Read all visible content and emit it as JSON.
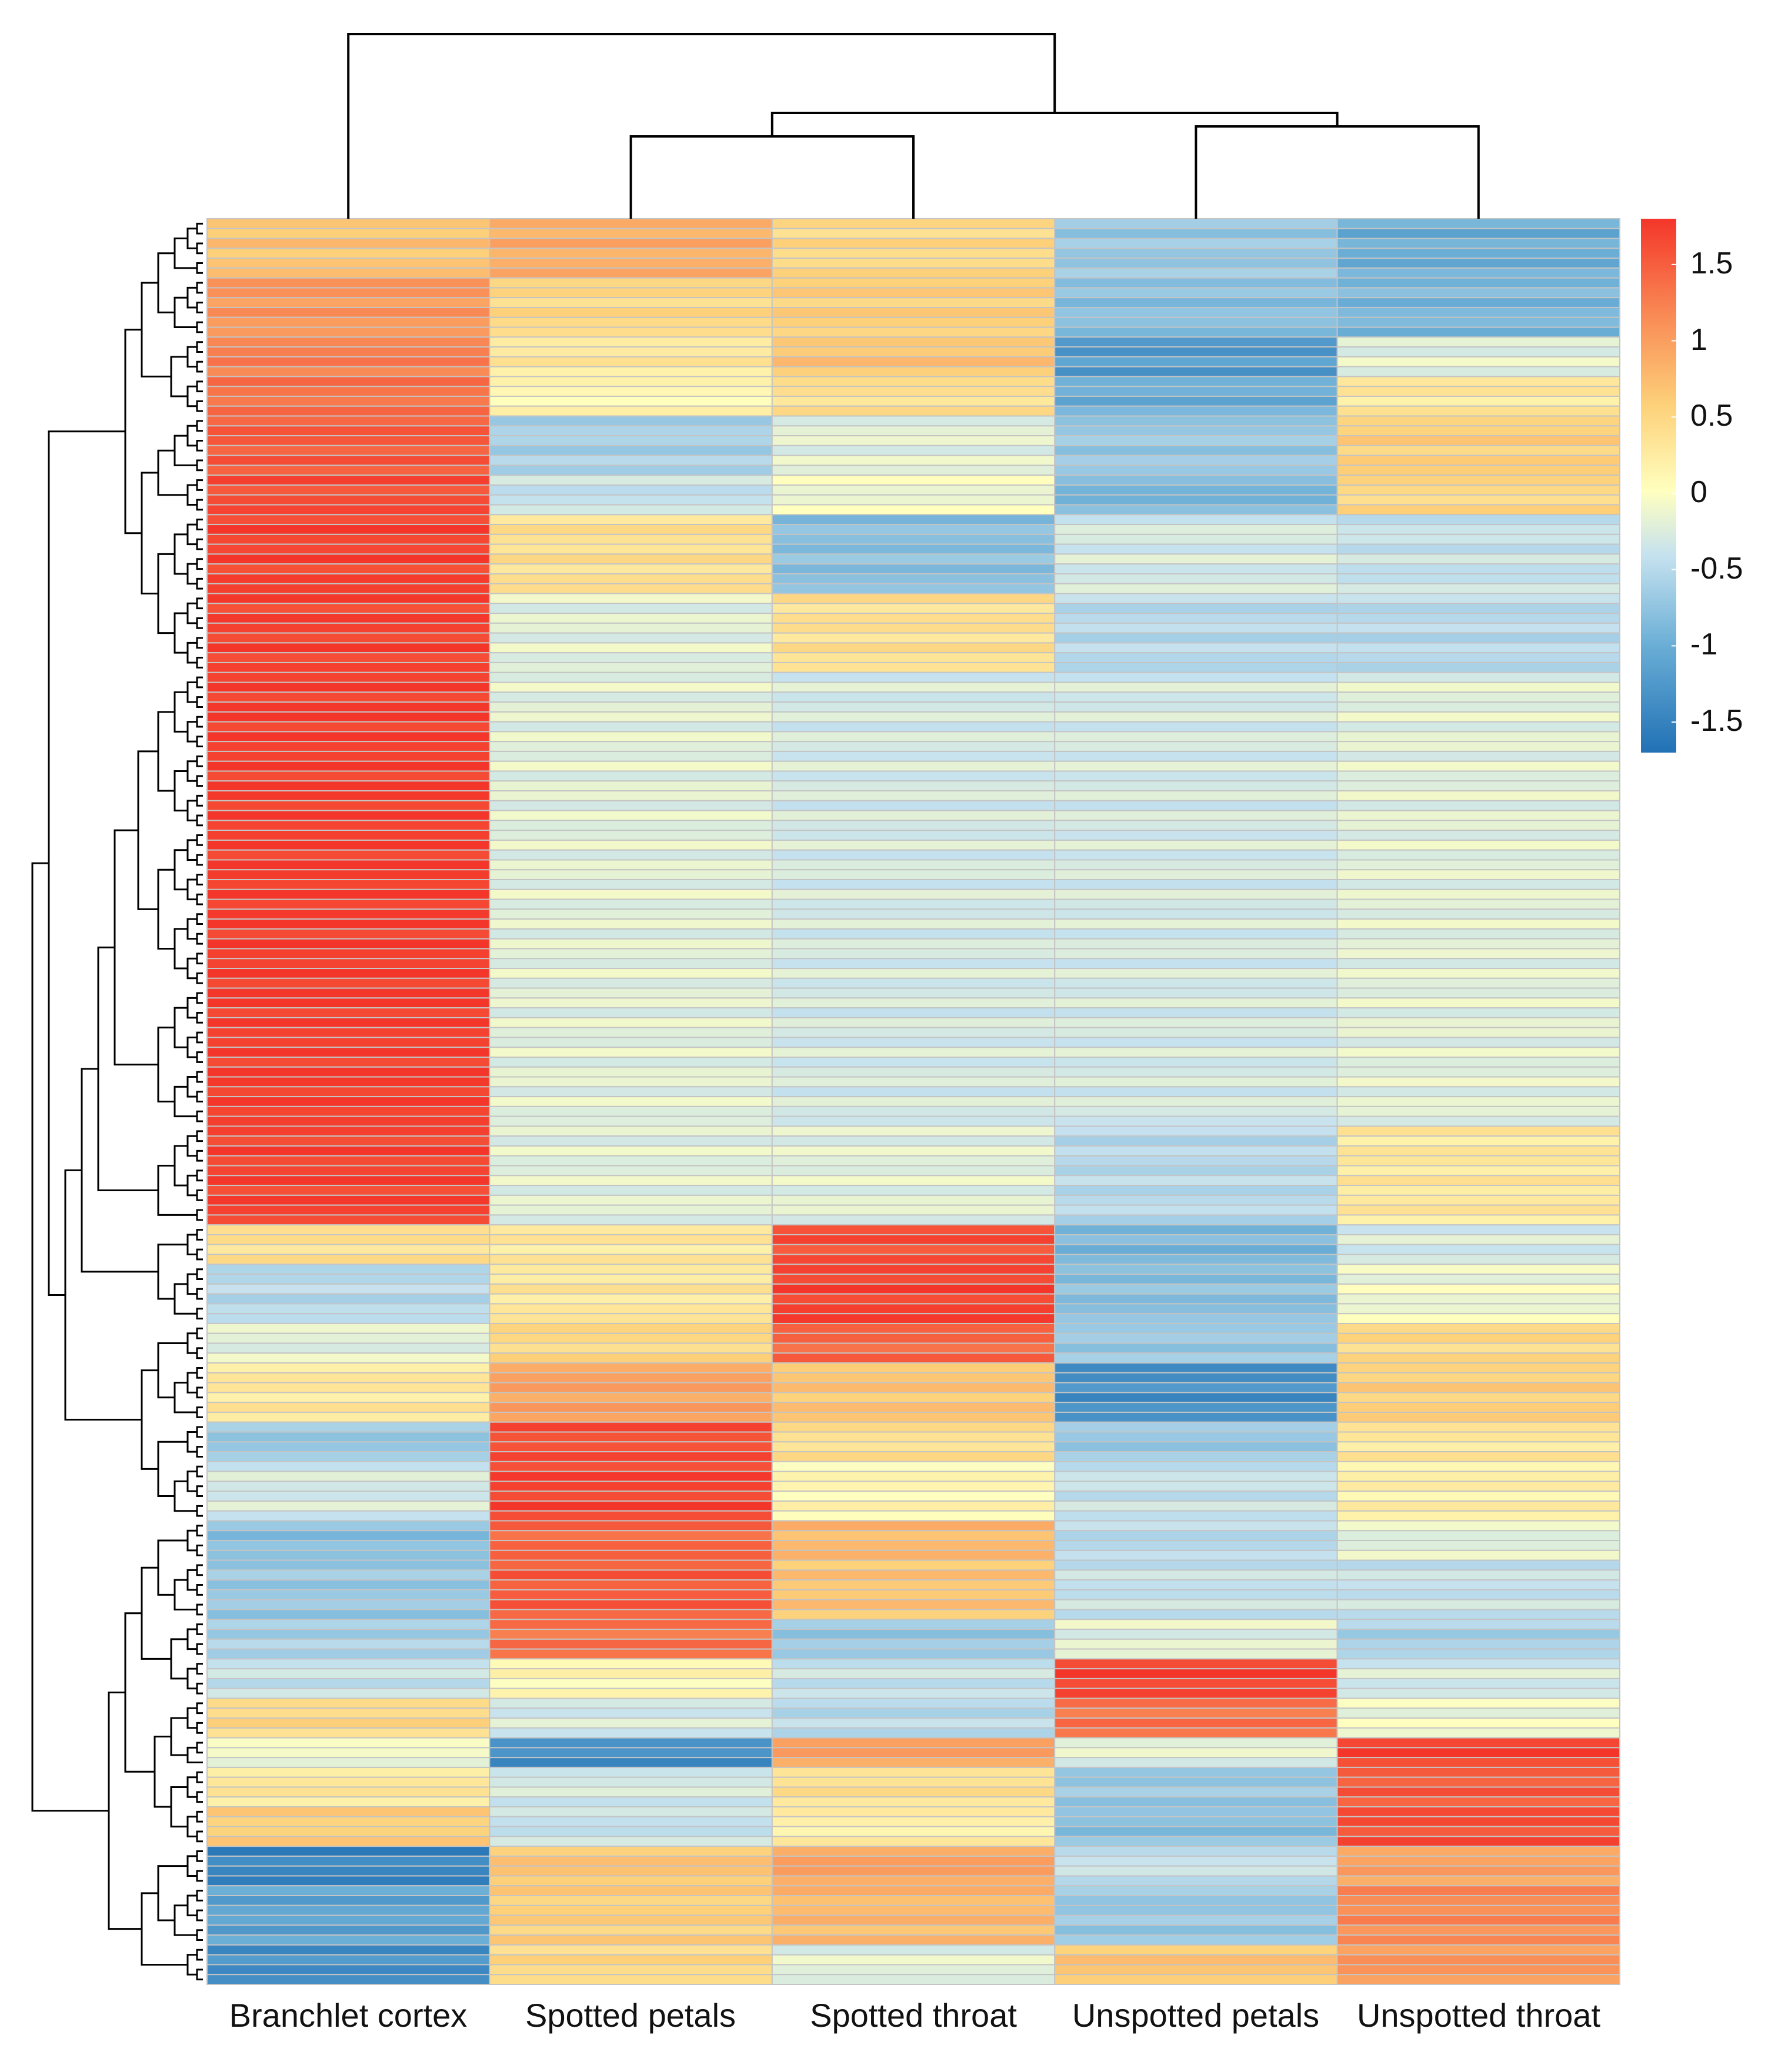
{
  "chart_data": {
    "type": "heatmap",
    "title": "",
    "columns": [
      "Branchlet cortex",
      "Spotted petals",
      "Spotted throat",
      "Unspotted petals",
      "Unspotted throat"
    ],
    "colorbar": {
      "min": -1.7,
      "max": 1.8,
      "ticks": [
        1.5,
        1,
        0.5,
        0,
        -0.5,
        -1,
        -1.5
      ],
      "tick_labels": [
        "1.5",
        "1",
        "0.5",
        "0",
        "-0.5",
        "-1",
        "-1.5"
      ],
      "low_color": "#2171b5",
      "mid_color": "#ffffbf",
      "high_color": "#f4362a"
    },
    "row_blocks": [
      {
        "rows": 6,
        "values": [
          0.6,
          0.8,
          0.4,
          -0.8,
          -1.1
        ]
      },
      {
        "rows": 6,
        "values": [
          1.0,
          0.4,
          0.5,
          -0.9,
          -1.0
        ]
      },
      {
        "rows": 4,
        "values": [
          1.2,
          0.2,
          0.6,
          -1.3,
          -0.3
        ]
      },
      {
        "rows": 4,
        "values": [
          1.3,
          0.0,
          0.3,
          -1.1,
          0.2
        ]
      },
      {
        "rows": 6,
        "values": [
          1.5,
          -0.7,
          -0.3,
          -0.8,
          0.5
        ]
      },
      {
        "rows": 4,
        "values": [
          1.6,
          -0.5,
          -0.2,
          -1.0,
          0.4
        ]
      },
      {
        "rows": 8,
        "values": [
          1.7,
          0.3,
          -0.9,
          -0.4,
          -0.5
        ]
      },
      {
        "rows": 8,
        "values": [
          1.7,
          -0.3,
          0.3,
          -0.6,
          -0.6
        ]
      },
      {
        "rows": 46,
        "values": [
          1.75,
          -0.3,
          -0.4,
          -0.4,
          -0.3
        ]
      },
      {
        "rows": 10,
        "values": [
          1.7,
          -0.3,
          -0.3,
          -0.6,
          0.2
        ]
      },
      {
        "rows": 4,
        "values": [
          0.3,
          0.2,
          1.6,
          -1.0,
          -0.4
        ]
      },
      {
        "rows": 6,
        "values": [
          -0.6,
          0.2,
          1.7,
          -0.9,
          -0.2
        ]
      },
      {
        "rows": 4,
        "values": [
          -0.3,
          0.4,
          1.4,
          -0.8,
          0.4
        ]
      },
      {
        "rows": 6,
        "values": [
          0.2,
          0.9,
          0.6,
          -1.4,
          0.5
        ]
      },
      {
        "rows": 4,
        "values": [
          -0.8,
          1.6,
          0.3,
          -0.8,
          0.2
        ]
      },
      {
        "rows": 6,
        "values": [
          -0.4,
          1.7,
          0.0,
          -0.5,
          0.1
        ]
      },
      {
        "rows": 4,
        "values": [
          -0.9,
          1.4,
          0.7,
          -0.6,
          -0.3
        ]
      },
      {
        "rows": 6,
        "values": [
          -0.8,
          1.5,
          0.6,
          -0.5,
          -0.5
        ]
      },
      {
        "rows": 4,
        "values": [
          -0.7,
          1.3,
          -0.8,
          -0.3,
          -0.7
        ]
      },
      {
        "rows": 4,
        "values": [
          -0.5,
          0.0,
          -0.5,
          1.7,
          -0.4
        ]
      },
      {
        "rows": 4,
        "values": [
          0.4,
          -0.4,
          -0.6,
          1.3,
          -0.2
        ]
      },
      {
        "rows": 3,
        "values": [
          -0.2,
          -1.4,
          0.9,
          -0.3,
          1.7
        ]
      },
      {
        "rows": 4,
        "values": [
          0.2,
          -0.4,
          0.3,
          -0.8,
          1.5
        ]
      },
      {
        "rows": 4,
        "values": [
          0.5,
          -0.5,
          0.1,
          -0.9,
          1.6
        ]
      },
      {
        "rows": 4,
        "values": [
          -1.5,
          0.6,
          0.9,
          -0.5,
          0.9
        ]
      },
      {
        "rows": 6,
        "values": [
          -1.2,
          0.5,
          0.7,
          -0.8,
          1.1
        ]
      },
      {
        "rows": 4,
        "values": [
          -1.4,
          0.4,
          -0.3,
          0.6,
          1.0
        ]
      }
    ]
  }
}
